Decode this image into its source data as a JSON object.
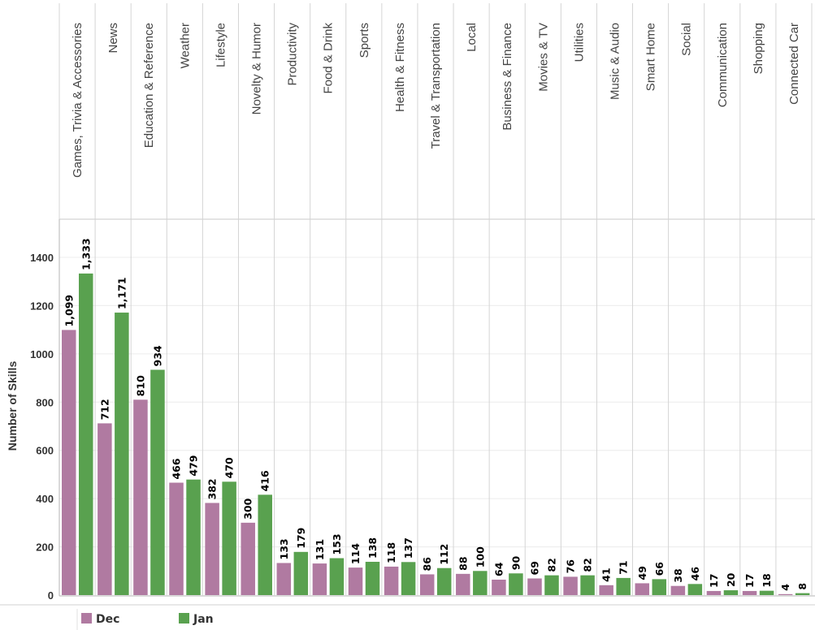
{
  "chart_data": {
    "type": "bar",
    "ylabel": "Number of Skills",
    "ylim": [
      0,
      1400
    ],
    "yticks": [
      0,
      200,
      400,
      600,
      800,
      1000,
      1200,
      1400
    ],
    "grid": true,
    "legend_position": "bottom",
    "categories": [
      "Games, Trivia & Accessories",
      "News",
      "Education & Reference",
      "Weather",
      "Lifestyle",
      "Novelty & Humor",
      "Productivity",
      "Food & Drink",
      "Sports",
      "Health & Fitness",
      "Travel & Transportation",
      "Local",
      "Business & Finance",
      "Movies & TV",
      "Utilities",
      "Music & Audio",
      "Smart Home",
      "Social",
      "Communication",
      "Shopping",
      "Connected Car"
    ],
    "series": [
      {
        "name": "Dec",
        "color": "#b07aa1",
        "values": [
          1099,
          712,
          810,
          466,
          382,
          300,
          133,
          131,
          114,
          118,
          86,
          88,
          64,
          69,
          76,
          41,
          49,
          38,
          17,
          17,
          4
        ],
        "labels": [
          "1,099",
          "712",
          "810",
          "466",
          "382",
          "300",
          "133",
          "131",
          "114",
          "118",
          "86",
          "88",
          "64",
          "69",
          "76",
          "41",
          "49",
          "38",
          "17",
          "17",
          "4"
        ]
      },
      {
        "name": "Jan",
        "color": "#59a14f",
        "values": [
          1333,
          1171,
          934,
          479,
          470,
          416,
          179,
          153,
          138,
          137,
          112,
          100,
          90,
          82,
          82,
          71,
          66,
          46,
          20,
          18,
          8
        ],
        "labels": [
          "1,333",
          "1,171",
          "934",
          "479",
          "470",
          "416",
          "179",
          "153",
          "138",
          "137",
          "112",
          "100",
          "90",
          "82",
          "82",
          "71",
          "66",
          "46",
          "20",
          "18",
          "8"
        ]
      }
    ]
  }
}
